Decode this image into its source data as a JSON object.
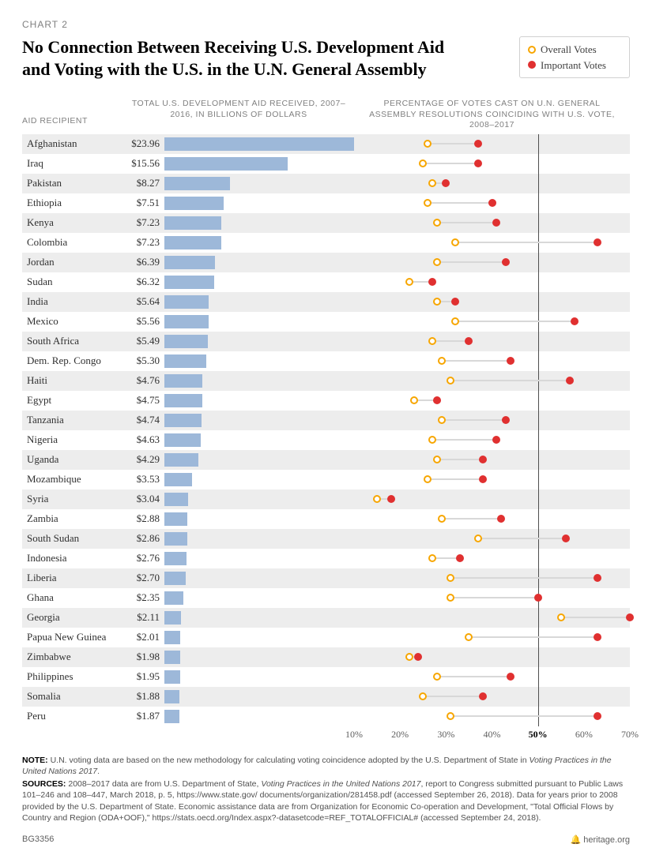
{
  "chart_label": "CHART 2",
  "title": "No Connection Between Receiving U.S. Development Aid and Voting with the U.S. in the U.N. General Assembly",
  "legend": {
    "overall": "Overall Votes",
    "important": "Important Votes",
    "overall_color_border": "#f7a600",
    "important_color": "#e03030"
  },
  "subheads": {
    "recipient": "AID RECIPIENT",
    "aid": "TOTAL U.S. DEVELOPMENT AID RECEIVED, 2007–2016, IN BILLIONS OF DOLLARS",
    "votes": "PERCENTAGE OF VOTES CAST ON U.N. GENERAL ASSEMBLY RESOLUTIONS COINCIDING WITH U.S. VOTE, 2008–2017"
  },
  "bar_chart": {
    "max_value": 24.0,
    "bar_color": "#9db8d9"
  },
  "dot_chart": {
    "xmin": 10,
    "xmax": 70,
    "ticks": [
      10,
      20,
      30,
      40,
      50,
      60,
      70
    ],
    "tick_labels": [
      "10%",
      "20%",
      "30%",
      "40%",
      "50%",
      "60%",
      "70%"
    ],
    "bold_tick": "50%",
    "ref_line": 50,
    "connector_color": "#d8d8d8",
    "overall_border": "#f7a600",
    "important_fill": "#e03030"
  },
  "rows": [
    {
      "country": "Afghanistan",
      "amount": "$23.96",
      "aid": 23.96,
      "overall": 26,
      "important": 37
    },
    {
      "country": "Iraq",
      "amount": "$15.56",
      "aid": 15.56,
      "overall": 25,
      "important": 37
    },
    {
      "country": "Pakistan",
      "amount": "$8.27",
      "aid": 8.27,
      "overall": 27,
      "important": 30
    },
    {
      "country": "Ethiopia",
      "amount": "$7.51",
      "aid": 7.51,
      "overall": 26,
      "important": 40
    },
    {
      "country": "Kenya",
      "amount": "$7.23",
      "aid": 7.23,
      "overall": 28,
      "important": 41
    },
    {
      "country": "Colombia",
      "amount": "$7.23",
      "aid": 7.23,
      "overall": 32,
      "important": 63
    },
    {
      "country": "Jordan",
      "amount": "$6.39",
      "aid": 6.39,
      "overall": 28,
      "important": 43
    },
    {
      "country": "Sudan",
      "amount": "$6.32",
      "aid": 6.32,
      "overall": 22,
      "important": 27
    },
    {
      "country": "India",
      "amount": "$5.64",
      "aid": 5.64,
      "overall": 28,
      "important": 32
    },
    {
      "country": "Mexico",
      "amount": "$5.56",
      "aid": 5.56,
      "overall": 32,
      "important": 58
    },
    {
      "country": "South Africa",
      "amount": "$5.49",
      "aid": 5.49,
      "overall": 27,
      "important": 35
    },
    {
      "country": "Dem. Rep. Congo",
      "amount": "$5.30",
      "aid": 5.3,
      "overall": 29,
      "important": 44
    },
    {
      "country": "Haiti",
      "amount": "$4.76",
      "aid": 4.76,
      "overall": 31,
      "important": 57
    },
    {
      "country": "Egypt",
      "amount": "$4.75",
      "aid": 4.75,
      "overall": 23,
      "important": 28
    },
    {
      "country": "Tanzania",
      "amount": "$4.74",
      "aid": 4.74,
      "overall": 29,
      "important": 43
    },
    {
      "country": "Nigeria",
      "amount": "$4.63",
      "aid": 4.63,
      "overall": 27,
      "important": 41
    },
    {
      "country": "Uganda",
      "amount": "$4.29",
      "aid": 4.29,
      "overall": 28,
      "important": 38
    },
    {
      "country": "Mozambique",
      "amount": "$3.53",
      "aid": 3.53,
      "overall": 26,
      "important": 38
    },
    {
      "country": "Syria",
      "amount": "$3.04",
      "aid": 3.04,
      "overall": 15,
      "important": 18
    },
    {
      "country": "Zambia",
      "amount": "$2.88",
      "aid": 2.88,
      "overall": 29,
      "important": 42
    },
    {
      "country": "South Sudan",
      "amount": "$2.86",
      "aid": 2.86,
      "overall": 37,
      "important": 56
    },
    {
      "country": "Indonesia",
      "amount": "$2.76",
      "aid": 2.76,
      "overall": 27,
      "important": 33
    },
    {
      "country": "Liberia",
      "amount": "$2.70",
      "aid": 2.7,
      "overall": 31,
      "important": 63
    },
    {
      "country": "Ghana",
      "amount": "$2.35",
      "aid": 2.35,
      "overall": 31,
      "important": 50
    },
    {
      "country": "Georgia",
      "amount": "$2.11",
      "aid": 2.11,
      "overall": 55,
      "important": 70
    },
    {
      "country": "Papua New Guinea",
      "amount": "$2.01",
      "aid": 2.01,
      "overall": 35,
      "important": 63
    },
    {
      "country": "Zimbabwe",
      "amount": "$1.98",
      "aid": 1.98,
      "overall": 22,
      "important": 24
    },
    {
      "country": "Philippines",
      "amount": "$1.95",
      "aid": 1.95,
      "overall": 28,
      "important": 44
    },
    {
      "country": "Somalia",
      "amount": "$1.88",
      "aid": 1.88,
      "overall": 25,
      "important": 38
    },
    {
      "country": "Peru",
      "amount": "$1.87",
      "aid": 1.87,
      "overall": 31,
      "important": 63
    }
  ],
  "note_label": "NOTE:",
  "note_text": " U.N. voting data are based on the new methodology for calculating voting coincidence adopted by the U.S. Department of State in ",
  "note_em": "Voting Practices in the United Nations 2017",
  "note_period": ".",
  "sources_label": "SOURCES:",
  "sources_text": " 2008–2017 data are from U.S. Department of State, ",
  "sources_em1": "Voting Practices in the United Nations 2017",
  "sources_text2": ", report to Congress submitted pursuant to Public Laws 101–246 and 108–447, March 2018, p. 5, https://www.state.gov/ documents/organization/281458.pdf (accessed September 26, 2018). Data for years prior to 2008 provided by the U.S. Department of State. Economic assistance data are from Organization for Economic Co-operation and Development, \"Total Official Flows by Country and Region (ODA+OOF),\" https://stats.oecd.org/Index.aspx?-datasetcode=REF_TOTALOFFICIAL# (accessed September 24, 2018).",
  "footer": {
    "code": "BG3356",
    "site": "heritage.org"
  },
  "colors": {
    "row_alt_bg": "#ededed",
    "subhead_text": "#808080",
    "body_text": "#303030"
  }
}
